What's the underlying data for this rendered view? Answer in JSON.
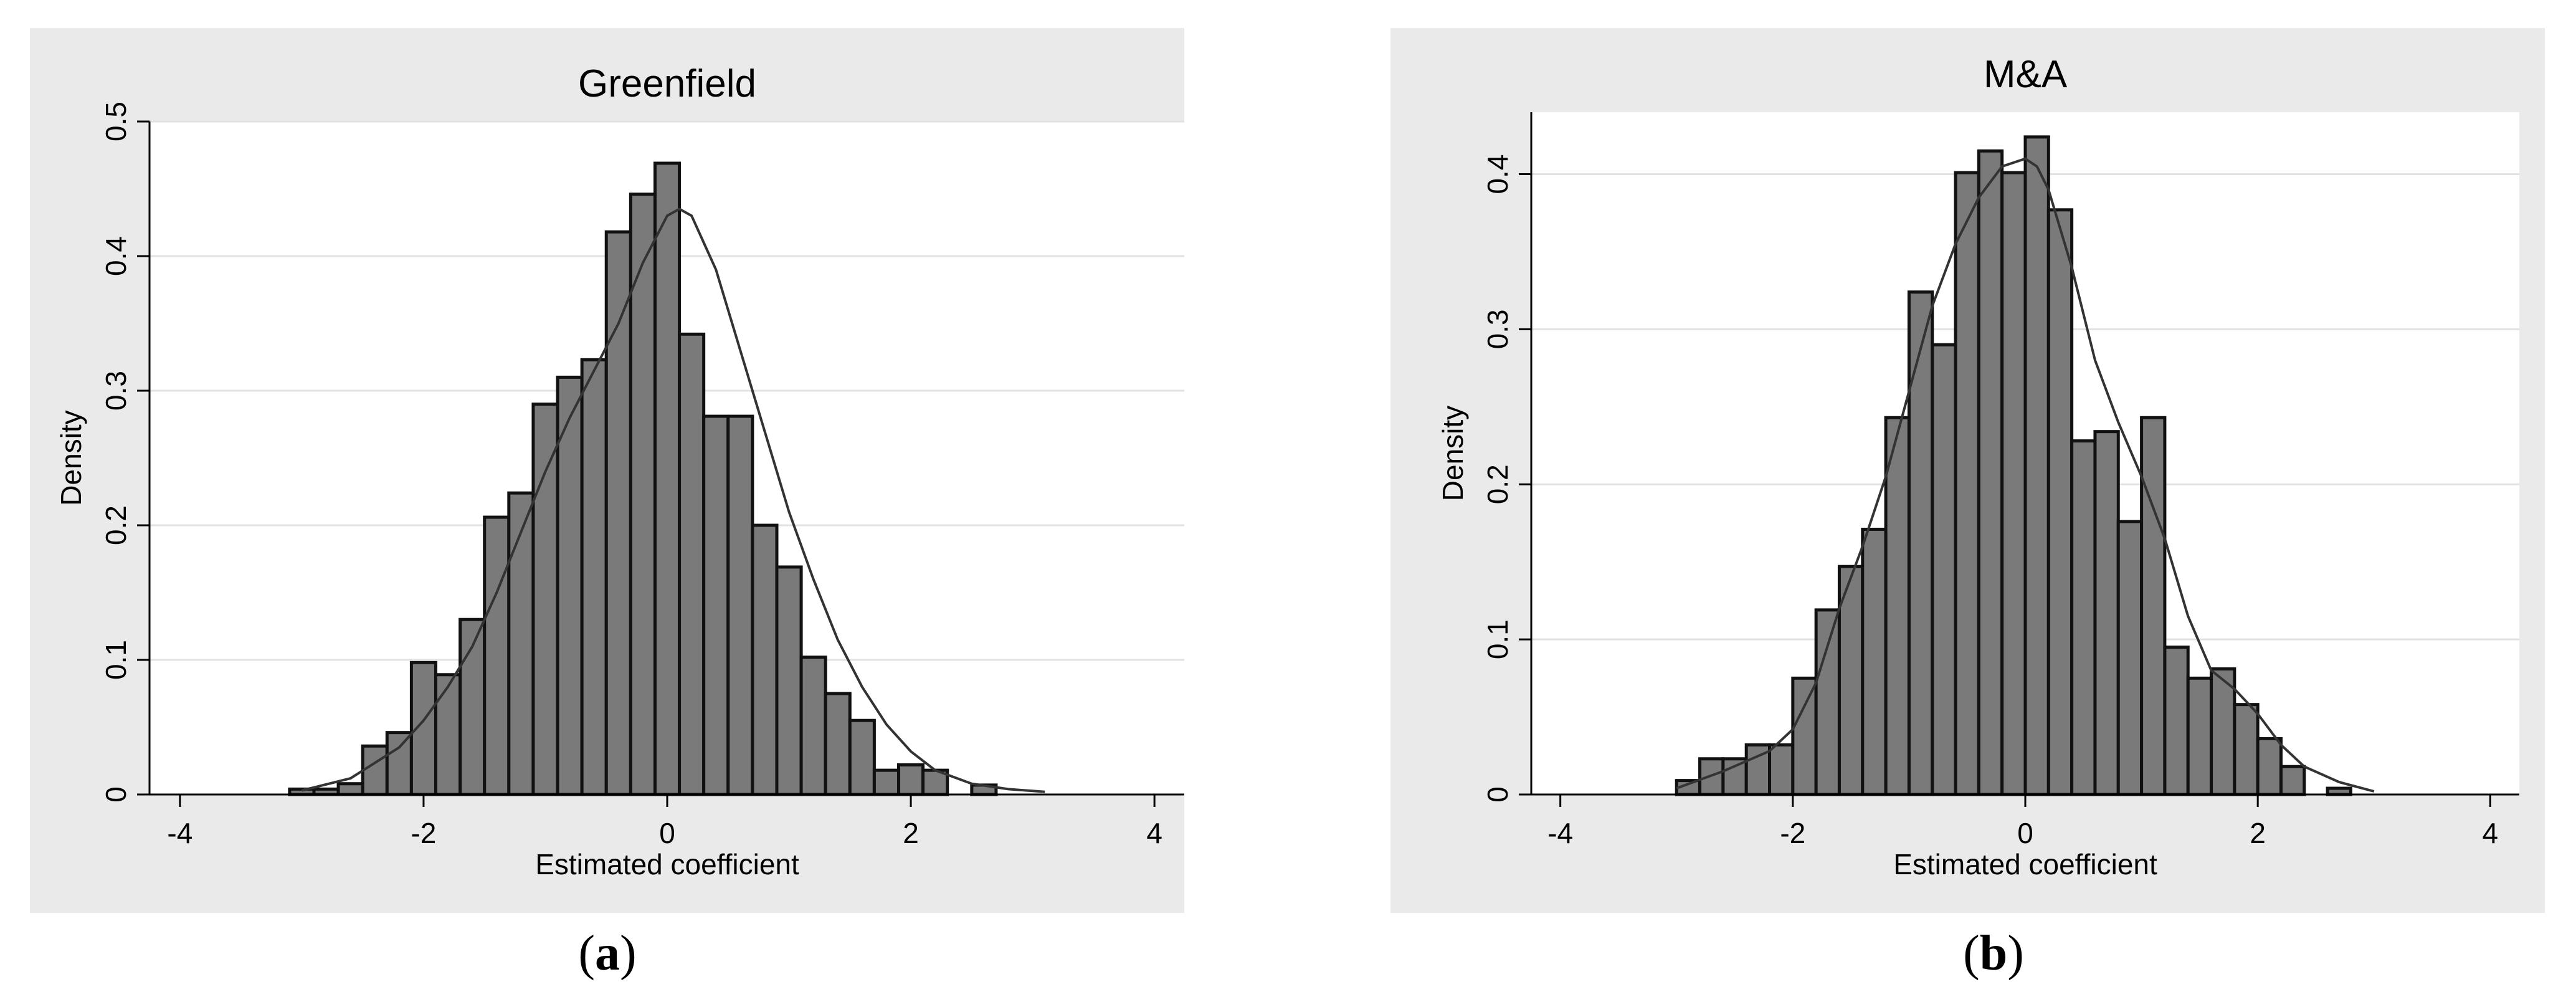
{
  "chart_data": [
    {
      "type": "bar",
      "title": "Greenfield",
      "xlabel": "Estimated coefficient",
      "ylabel": "Density",
      "xlim": [
        -4.25,
        4.25
      ],
      "ylim": [
        0,
        0.5
      ],
      "xticks": [
        -4,
        -2,
        0,
        2,
        4
      ],
      "yticks": [
        0,
        0.1,
        0.2,
        0.3,
        0.4,
        0.5
      ],
      "grid": true,
      "bin_width": 0.2,
      "bin_start": -3.1,
      "values": [
        0.004,
        0.004,
        0.008,
        0.036,
        0.046,
        0.098,
        0.089,
        0.13,
        0.206,
        0.224,
        0.29,
        0.31,
        0.323,
        0.418,
        0.446,
        0.469,
        0.342,
        0.281,
        0.281,
        0.2,
        0.169,
        0.102,
        0.075,
        0.055,
        0.018,
        0.022,
        0.018,
        0.0,
        0.007
      ],
      "density_curve": {
        "x": [
          -3.0,
          -2.6,
          -2.2,
          -2.0,
          -1.8,
          -1.6,
          -1.4,
          -1.2,
          -1.0,
          -0.8,
          -0.6,
          -0.4,
          -0.2,
          0.0,
          0.1,
          0.2,
          0.4,
          0.6,
          0.8,
          1.0,
          1.2,
          1.4,
          1.6,
          1.8,
          2.0,
          2.2,
          2.5,
          2.8,
          3.1
        ],
        "y": [
          0.003,
          0.012,
          0.035,
          0.055,
          0.08,
          0.11,
          0.15,
          0.195,
          0.24,
          0.28,
          0.315,
          0.35,
          0.395,
          0.43,
          0.435,
          0.43,
          0.39,
          0.33,
          0.27,
          0.21,
          0.16,
          0.115,
          0.08,
          0.052,
          0.032,
          0.018,
          0.008,
          0.004,
          0.002
        ]
      }
    },
    {
      "type": "bar",
      "title": "M&A",
      "xlabel": "Estimated coefficient",
      "ylabel": "Density",
      "xlim": [
        -4.25,
        4.25
      ],
      "ylim": [
        0,
        0.44
      ],
      "xticks": [
        -4,
        -2,
        0,
        2,
        4
      ],
      "yticks": [
        0,
        0.1,
        0.2,
        0.3,
        0.4
      ],
      "grid": true,
      "bin_width": 0.2,
      "bin_start": -3.0,
      "values": [
        0.009,
        0.023,
        0.023,
        0.032,
        0.032,
        0.075,
        0.119,
        0.147,
        0.171,
        0.243,
        0.324,
        0.29,
        0.401,
        0.415,
        0.401,
        0.424,
        0.377,
        0.228,
        0.234,
        0.176,
        0.243,
        0.095,
        0.075,
        0.081,
        0.058,
        0.036,
        0.018,
        0.0,
        0.004
      ],
      "density_curve": {
        "x": [
          -3.0,
          -2.6,
          -2.2,
          -2.0,
          -1.8,
          -1.6,
          -1.4,
          -1.2,
          -1.0,
          -0.8,
          -0.6,
          -0.4,
          -0.2,
          0.0,
          0.1,
          0.2,
          0.4,
          0.6,
          0.8,
          1.0,
          1.2,
          1.4,
          1.6,
          1.8,
          2.0,
          2.2,
          2.4,
          2.7,
          3.0
        ],
        "y": [
          0.004,
          0.015,
          0.028,
          0.042,
          0.072,
          0.12,
          0.16,
          0.205,
          0.26,
          0.315,
          0.355,
          0.385,
          0.405,
          0.41,
          0.405,
          0.39,
          0.34,
          0.28,
          0.24,
          0.205,
          0.165,
          0.115,
          0.08,
          0.068,
          0.052,
          0.032,
          0.018,
          0.008,
          0.002
        ]
      }
    }
  ],
  "captions": [
    "a",
    "b"
  ],
  "colors": {
    "bar_fill": "#7a7a7a",
    "bar_stroke": "#111111",
    "curve": "#333333",
    "grid": "#e2e2e2",
    "panel_bg": "#eaeaea",
    "plot_bg": "#ffffff"
  }
}
